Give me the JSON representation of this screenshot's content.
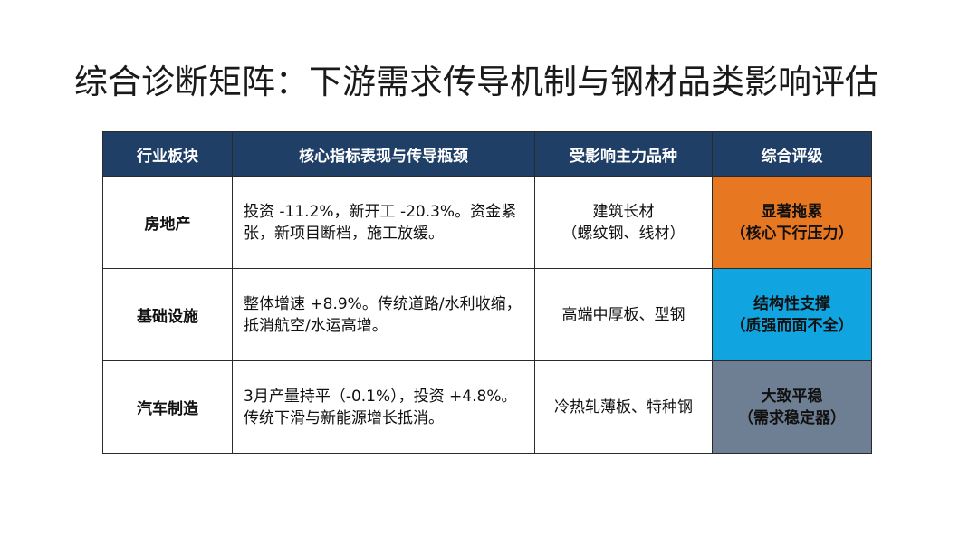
{
  "page": {
    "title": "综合诊断矩阵：下游需求传导机制与钢材品类影响评估"
  },
  "table": {
    "headers": [
      "行业板块",
      "核心指标表现与传导瓶颈",
      "受影响主力品种",
      "综合评级"
    ],
    "rows": [
      {
        "sector": "房地产",
        "desc": "投资 -11.2%，新开工 -20.3%。资金紧张，新项目断档，施工放缓。",
        "product": "建筑长材（螺纹钢、线材）",
        "product_line1": "建筑长材",
        "product_line2": "（螺纹钢、线材）",
        "rating_line1": "显著拖累",
        "rating_line2": "（核心下行压力）",
        "rating_color": "#e87722"
      },
      {
        "sector": "基础设施",
        "desc": "整体增速 +8.9%。传统道路/水利收缩，抵消航空/水运高增。",
        "product": "高端中厚板、型钢",
        "product_line1": "高端中厚板、型钢",
        "product_line2": "",
        "rating_line1": "结构性支撑",
        "rating_line2": "（质强而面不全）",
        "rating_color": "#10a5e0"
      },
      {
        "sector": "汽车制造",
        "desc": "3月产量持平（-0.1%），投资 +4.8%。传统下滑与新能源增长抵消。",
        "product": "冷热轧薄板、特种钢",
        "product_line1": "冷热轧薄板、特种钢",
        "product_line2": "",
        "rating_line1": "大致平稳",
        "rating_line2": "（需求稳定器）",
        "rating_color": "#6f7f93"
      }
    ]
  }
}
